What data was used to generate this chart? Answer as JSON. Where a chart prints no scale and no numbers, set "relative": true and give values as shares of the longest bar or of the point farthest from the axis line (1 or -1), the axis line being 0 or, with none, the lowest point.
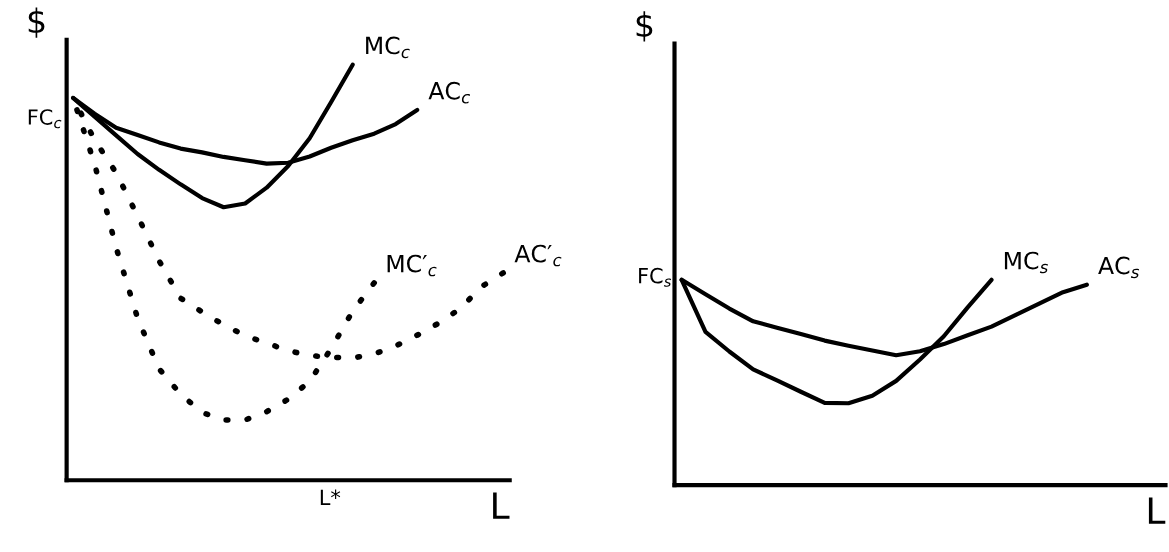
{
  "chart_data": [
    {
      "type": "line",
      "relative": true,
      "xlabel": "L",
      "ylabel": "$",
      "categories": [
        null,
        null,
        null,
        null,
        null,
        null,
        null,
        null,
        null,
        null,
        null,
        null,
        null,
        null,
        null,
        null,
        null,
        null,
        null,
        null,
        null
      ],
      "tick_labels": false,
      "legend": false,
      "grid": false,
      "annotations": [
        "FC$_{c}$",
        "L*"
      ],
      "series": [
        {
          "name": "MC$_{c}$",
          "color": "#000000",
          "line_style": "solid",
          "values": [
            0.92,
            0.875,
            0.83,
            0.785,
            0.747,
            0.712,
            0.679,
            0.657,
            0.666,
            0.704,
            0.756,
            0.823,
            0.91,
            1,
            null,
            null,
            null,
            null,
            null,
            null,
            null
          ]
        },
        {
          "name": "AC$_{c}$",
          "color": "#000000",
          "line_style": "solid",
          "values": [
            0.92,
            0.882,
            0.848,
            0.831,
            0.813,
            0.798,
            0.789,
            0.778,
            0.77,
            0.762,
            0.764,
            0.779,
            0.8,
            0.818,
            0.834,
            0.857,
            0.891,
            null,
            null,
            null,
            null
          ]
        },
        {
          "name": "MC′$_{c}$",
          "color": "#000000",
          "line_style": "dotted",
          "values": [
            0.92,
            0.761,
            0.56,
            0.39,
            0.268,
            0.207,
            0.163,
            0.145,
            0.145,
            0.165,
            0.195,
            0.238,
            0.317,
            0.407,
            0.475,
            null,
            null,
            null,
            null,
            null,
            null
          ]
        },
        {
          "name": "AC′$_{c}$",
          "color": "#000000",
          "line_style": "dotted",
          "values": [
            0.92,
            0.819,
            0.74,
            0.636,
            0.528,
            0.438,
            0.405,
            0.374,
            0.348,
            0.33,
            0.312,
            0.3,
            0.296,
            0.294,
            0.304,
            0.323,
            0.349,
            0.378,
            0.413,
            0.466,
            0.499
          ]
        }
      ]
    },
    {
      "type": "line",
      "relative": true,
      "xlabel": "L",
      "ylabel": "$",
      "categories": [
        null,
        null,
        null,
        null,
        null,
        null,
        null,
        null,
        null,
        null,
        null,
        null,
        null,
        null,
        null,
        null,
        null,
        null,
        null,
        null,
        null
      ],
      "tick_labels": false,
      "legend": false,
      "grid": false,
      "annotations": [
        "FC$_{s}$"
      ],
      "series": [
        {
          "name": "MC$_{s}$",
          "color": "#000000",
          "line_style": "solid",
          "values": [
            1,
            0.746,
            0.651,
            0.564,
            0.51,
            0.455,
            0.401,
            0.399,
            0.436,
            0.508,
            0.612,
            0.725,
            0.866,
            1,
            null,
            null,
            null,
            null,
            null,
            null,
            null
          ]
        },
        {
          "name": "AC$_{s}$",
          "color": "#000000",
          "line_style": "solid",
          "values": [
            1,
            0.93,
            0.86,
            0.798,
            0.767,
            0.736,
            0.704,
            0.679,
            0.656,
            0.633,
            0.652,
            0.687,
            0.73,
            0.772,
            0.828,
            0.884,
            0.94,
            0.976,
            null,
            null,
            null
          ]
        }
      ]
    }
  ]
}
